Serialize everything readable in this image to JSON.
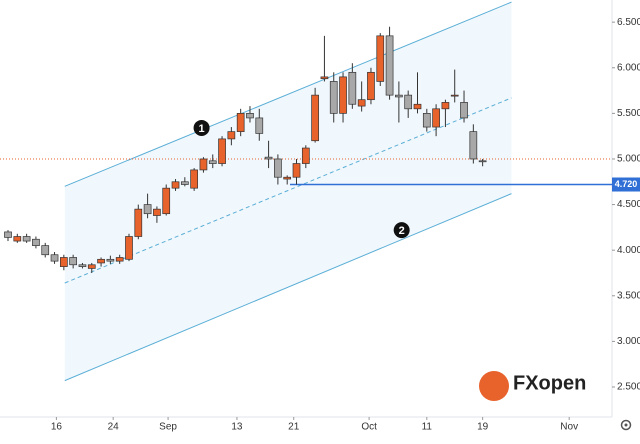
{
  "chart_data": {
    "type": "candlestick",
    "x": [
      0,
      1,
      2,
      3,
      4,
      5,
      6,
      7,
      8,
      9,
      10,
      11,
      12,
      13,
      14,
      15,
      16,
      17,
      18,
      19,
      20,
      21,
      22,
      23,
      24,
      25,
      26,
      27,
      28,
      29,
      30,
      31,
      32,
      33,
      34,
      35,
      36,
      37,
      38,
      39,
      40,
      41,
      42,
      43,
      44,
      45,
      46,
      47,
      48,
      49,
      50,
      51
    ],
    "open": [
      4.2,
      4.1,
      4.15,
      4.12,
      4.05,
      3.95,
      3.82,
      3.92,
      3.84,
      3.8,
      3.86,
      3.9,
      3.88,
      3.9,
      4.15,
      4.5,
      4.38,
      4.4,
      4.68,
      4.75,
      4.68,
      4.88,
      4.98,
      4.95,
      5.22,
      5.3,
      5.5,
      5.45,
      5.02,
      5.0,
      4.78,
      4.8,
      4.95,
      5.2,
      5.88,
      5.85,
      5.5,
      5.95,
      5.58,
      5.65,
      5.85,
      6.35,
      5.7,
      5.7,
      5.55,
      5.5,
      5.35,
      5.55,
      5.7,
      5.62,
      5.3,
      4.98
    ],
    "high": [
      4.22,
      4.18,
      4.18,
      4.15,
      4.08,
      3.98,
      3.95,
      3.95,
      3.86,
      3.86,
      3.92,
      3.94,
      3.95,
      4.18,
      4.5,
      4.62,
      4.48,
      4.72,
      4.78,
      4.8,
      4.9,
      5.02,
      5.05,
      5.25,
      5.35,
      5.55,
      5.58,
      5.55,
      5.2,
      5.05,
      4.82,
      5.0,
      5.15,
      5.78,
      6.35,
      5.95,
      5.95,
      6.05,
      5.85,
      6.0,
      6.38,
      6.45,
      5.85,
      5.75,
      5.95,
      5.55,
      5.6,
      5.65,
      5.98,
      5.75,
      5.38,
      5.0
    ],
    "low": [
      4.1,
      4.08,
      4.08,
      4.02,
      3.92,
      3.85,
      3.78,
      3.8,
      3.8,
      3.75,
      3.82,
      3.85,
      3.85,
      3.88,
      4.12,
      4.35,
      4.3,
      4.38,
      4.65,
      4.7,
      4.65,
      4.85,
      4.9,
      4.92,
      5.15,
      5.25,
      5.4,
      5.2,
      4.9,
      4.72,
      4.72,
      4.72,
      4.9,
      5.18,
      5.85,
      5.4,
      5.4,
      5.55,
      5.52,
      5.6,
      5.8,
      5.65,
      5.4,
      5.45,
      5.5,
      5.3,
      5.25,
      5.35,
      5.62,
      5.4,
      4.95,
      4.92
    ],
    "close": [
      4.14,
      4.15,
      4.1,
      4.05,
      3.95,
      3.88,
      3.92,
      3.84,
      3.82,
      3.84,
      3.9,
      3.88,
      3.92,
      4.15,
      4.45,
      4.4,
      4.45,
      4.68,
      4.75,
      4.72,
      4.88,
      5.0,
      4.95,
      5.22,
      5.3,
      5.5,
      5.45,
      5.28,
      5.0,
      4.8,
      4.8,
      4.95,
      5.12,
      5.7,
      5.9,
      5.5,
      5.9,
      5.6,
      5.65,
      5.95,
      6.35,
      5.7,
      5.68,
      5.55,
      5.6,
      5.35,
      5.55,
      5.62,
      5.7,
      5.45,
      5.0,
      4.97
    ],
    "up_color": "#e8622c",
    "down_color": "#a8a8a8",
    "xlim": [
      -0.86,
      64.9
    ],
    "xticks": [
      {
        "value": 5.2,
        "label": "16"
      },
      {
        "value": 11.3,
        "label": "24"
      },
      {
        "value": 17.2,
        "label": "Sep"
      },
      {
        "value": 24.6,
        "label": "13"
      },
      {
        "value": 30.7,
        "label": "21"
      },
      {
        "value": 38.8,
        "label": "Oct"
      },
      {
        "value": 45.0,
        "label": "11"
      },
      {
        "value": 51.0,
        "label": "19"
      },
      {
        "value": 60.3,
        "label": "Nov"
      }
    ],
    "ylim": [
      2.171,
      6.743
    ],
    "yticks": [
      {
        "value": 2.5,
        "label": "2.500"
      },
      {
        "value": 3,
        "label": "3.000"
      },
      {
        "value": 3.5,
        "label": "3.500"
      },
      {
        "value": 4,
        "label": "4.000"
      },
      {
        "value": 4.5,
        "label": "4.500"
      },
      {
        "value": 5,
        "label": "5.000"
      },
      {
        "value": 5.5,
        "label": "5.500"
      },
      {
        "value": 6,
        "label": "6.000"
      },
      {
        "value": 6.5,
        "label": "6.500"
      }
    ],
    "channel": {
      "x": [
        6.1,
        54.1
      ],
      "upper": [
        4.7,
        6.72
      ],
      "middle": [
        3.64,
        5.67
      ],
      "lower": [
        2.57,
        4.62
      ],
      "color": "#5aaed6"
    },
    "level": {
      "value": 4.72,
      "label": "4.720",
      "start": 30.3,
      "color": "#2f6fd6"
    },
    "last_price": 5.0,
    "annotations": [
      {
        "text": "1",
        "x": 20.8,
        "y": 5.34
      },
      {
        "text": "2",
        "x": 42.3,
        "y": 4.22
      }
    ],
    "logo": "FXopen"
  }
}
